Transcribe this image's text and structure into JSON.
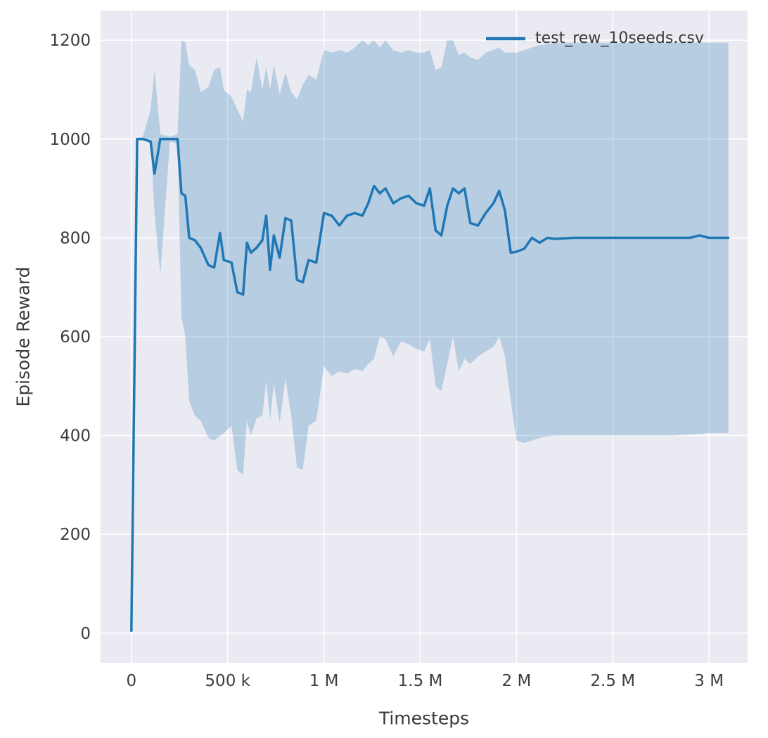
{
  "figure": {
    "bg": "#ffffff"
  },
  "axes": {
    "bg": "#eaeaf2",
    "grid_color": "#ffffff"
  },
  "legend": {
    "label": "test_rew_10seeds.csv",
    "line_color": "#1f77b4"
  },
  "chart_data": {
    "type": "line",
    "title": "",
    "xlabel": "Timesteps",
    "ylabel": "Episode Reward",
    "x_unit": "millions of timesteps",
    "xlim": [
      -0.16,
      3.2
    ],
    "ylim": [
      -60,
      1260
    ],
    "grid": true,
    "legend_position": "upper right",
    "xticks": [
      0,
      0.5,
      1,
      1.5,
      2,
      2.5,
      3
    ],
    "xtick_labels": [
      "0",
      "500 k",
      "1 M",
      "1.5 M",
      "2 M",
      "2.5 M",
      "3 M"
    ],
    "yticks": [
      0,
      200,
      400,
      600,
      800,
      1000,
      1200
    ],
    "ytick_labels": [
      "0",
      "200",
      "400",
      "600",
      "800",
      "1000",
      "1200"
    ],
    "series": [
      {
        "name": "test_rew_10seeds.csv",
        "color": "#1f77b4",
        "band_opacity": 0.25,
        "x": [
          0,
          0.03,
          0.06,
          0.1,
          0.12,
          0.15,
          0.2,
          0.24,
          0.26,
          0.28,
          0.3,
          0.33,
          0.36,
          0.4,
          0.43,
          0.46,
          0.48,
          0.52,
          0.55,
          0.58,
          0.6,
          0.62,
          0.65,
          0.68,
          0.7,
          0.72,
          0.74,
          0.77,
          0.8,
          0.83,
          0.86,
          0.89,
          0.92,
          0.96,
          1.0,
          1.04,
          1.08,
          1.12,
          1.16,
          1.2,
          1.23,
          1.26,
          1.29,
          1.32,
          1.36,
          1.4,
          1.44,
          1.48,
          1.52,
          1.55,
          1.58,
          1.61,
          1.64,
          1.67,
          1.7,
          1.73,
          1.76,
          1.8,
          1.84,
          1.88,
          1.91,
          1.94,
          1.97,
          2.0,
          2.04,
          2.08,
          2.12,
          2.16,
          2.2,
          2.3,
          2.4,
          2.6,
          2.8,
          2.9,
          2.95,
          3.0,
          3.1
        ],
        "mean": [
          5,
          1000,
          1000,
          995,
          930,
          1000,
          1000,
          1000,
          890,
          885,
          800,
          795,
          780,
          745,
          740,
          810,
          755,
          750,
          690,
          685,
          790,
          770,
          780,
          795,
          845,
          735,
          805,
          760,
          840,
          835,
          715,
          710,
          755,
          750,
          850,
          845,
          825,
          845,
          850,
          845,
          870,
          905,
          890,
          900,
          870,
          880,
          885,
          870,
          865,
          900,
          815,
          805,
          865,
          900,
          890,
          900,
          830,
          825,
          850,
          870,
          895,
          855,
          770,
          772,
          778,
          800,
          790,
          800,
          798,
          800,
          800,
          800,
          800,
          800,
          805,
          800,
          800
        ],
        "band_lower": [
          5,
          1000,
          1000,
          990,
          850,
          725,
          995,
          990,
          640,
          600,
          470,
          440,
          430,
          395,
          390,
          400,
          405,
          420,
          330,
          320,
          430,
          400,
          435,
          440,
          510,
          430,
          505,
          425,
          515,
          440,
          335,
          330,
          420,
          430,
          540,
          520,
          530,
          525,
          535,
          530,
          545,
          555,
          600,
          595,
          560,
          590,
          585,
          575,
          570,
          595,
          500,
          490,
          545,
          600,
          530,
          555,
          545,
          560,
          570,
          580,
          600,
          560,
          470,
          390,
          385,
          390,
          395,
          398,
          400,
          400,
          400,
          400,
          400,
          402,
          403,
          405,
          405
        ],
        "band_upper": [
          5,
          1000,
          1005,
          1060,
          1140,
          1010,
          1005,
          1010,
          1200,
          1195,
          1150,
          1140,
          1095,
          1105,
          1140,
          1145,
          1100,
          1085,
          1060,
          1035,
          1100,
          1095,
          1165,
          1100,
          1145,
          1100,
          1150,
          1090,
          1135,
          1095,
          1080,
          1110,
          1130,
          1120,
          1180,
          1175,
          1180,
          1175,
          1185,
          1200,
          1190,
          1200,
          1185,
          1200,
          1180,
          1175,
          1180,
          1175,
          1175,
          1180,
          1140,
          1145,
          1200,
          1200,
          1170,
          1175,
          1165,
          1160,
          1175,
          1180,
          1185,
          1175,
          1175,
          1175,
          1180,
          1185,
          1190,
          1192,
          1195,
          1195,
          1195,
          1195,
          1195,
          1195,
          1195,
          1195,
          1195
        ]
      }
    ]
  }
}
